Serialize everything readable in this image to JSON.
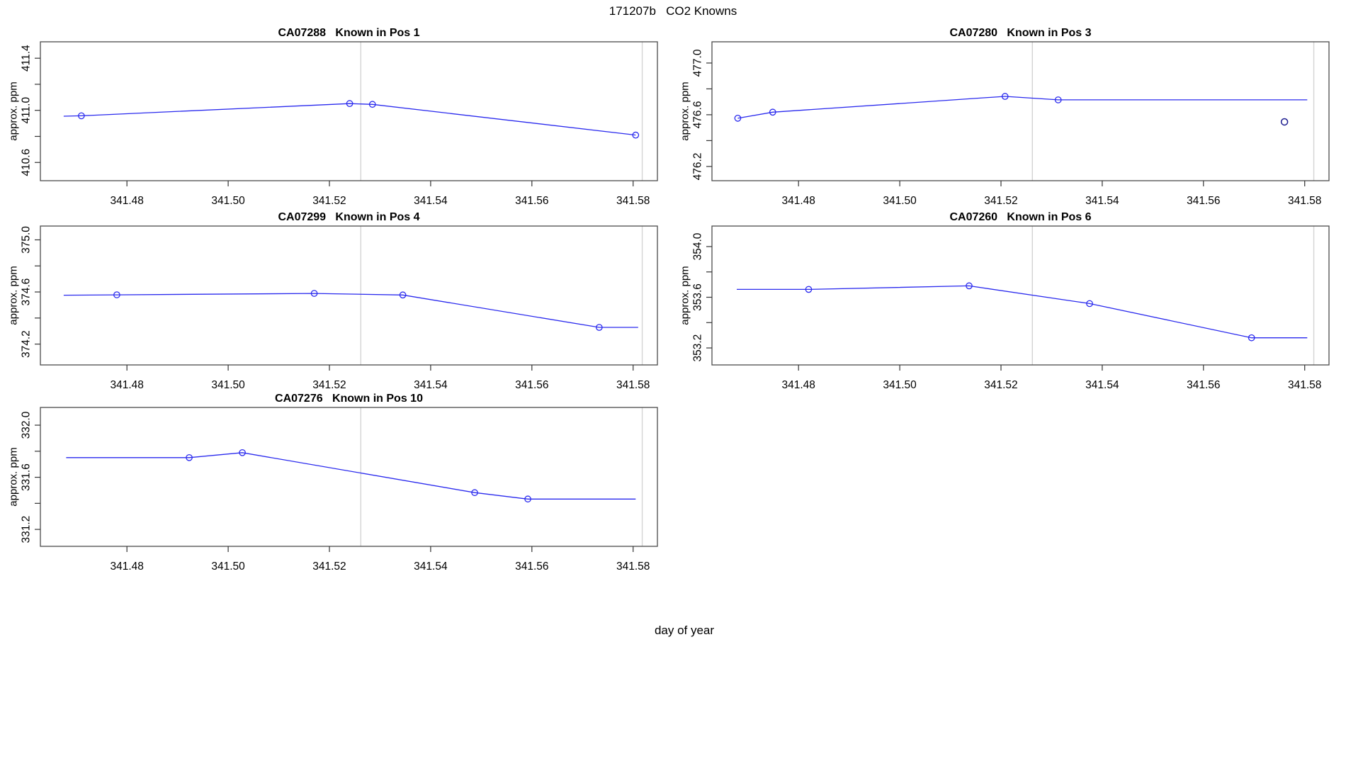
{
  "figure": {
    "title": "171207b   CO2 Knowns",
    "xlabel": "day of year"
  },
  "colors": {
    "line": "#2a2aee",
    "marker": "#2a2aee",
    "outlier": "#1c1c8f",
    "box": "#4a4a4a",
    "tick": "#333333",
    "gridline": "#d4d4d4",
    "text": "#000000",
    "background": "#ffffff"
  },
  "axes": {
    "xlim": [
      341.4629,
      341.5848
    ],
    "xticks": [
      341.48,
      341.5,
      341.52,
      341.54,
      341.56,
      341.58
    ],
    "xtick_labels": [
      "341.48",
      "341.50",
      "341.52",
      "341.54",
      "341.56",
      "341.58"
    ],
    "vlines": [
      341.5262,
      341.5818
    ]
  },
  "chart_data": [
    {
      "type": "line",
      "title": "CA07288   Known in Pos 1",
      "station": "CA07288",
      "position_label": "Known in Pos 1",
      "ylabel": "approx. ppm",
      "grid_row": 0,
      "grid_col": 0,
      "ylim": [
        410.46,
        411.526
      ],
      "yticks_major": [
        410.6,
        411.0,
        411.4
      ],
      "ytick_labels": [
        "410.6",
        "411.0",
        "411.4"
      ],
      "yticks_minor": [
        410.8,
        411.2
      ],
      "points": [
        {
          "x": 341.4675,
          "y": 410.955,
          "marker": false
        },
        {
          "x": 341.471,
          "y": 410.958,
          "marker": true
        },
        {
          "x": 341.524,
          "y": 411.052,
          "marker": true
        },
        {
          "x": 341.5285,
          "y": 411.046,
          "marker": true
        },
        {
          "x": 341.5805,
          "y": 410.81,
          "marker": true
        }
      ],
      "outlier_points": []
    },
    {
      "type": "line",
      "title": "CA07280   Known in Pos 3",
      "station": "CA07280",
      "position_label": "Known in Pos 3",
      "ylabel": "approx. ppm",
      "grid_row": 0,
      "grid_col": 1,
      "ylim": [
        476.09,
        477.164
      ],
      "yticks_major": [
        476.2,
        476.6,
        477.0
      ],
      "ytick_labels": [
        "476.2",
        "476.6",
        "477.0"
      ],
      "yticks_minor": [
        476.4,
        476.8
      ],
      "points": [
        {
          "x": 341.468,
          "y": 476.573,
          "marker": true
        },
        {
          "x": 341.4749,
          "y": 476.62,
          "marker": true
        },
        {
          "x": 341.5208,
          "y": 476.742,
          "marker": true
        },
        {
          "x": 341.5313,
          "y": 476.715,
          "marker": true
        },
        {
          "x": 341.5805,
          "y": 476.715,
          "marker": false
        }
      ],
      "outlier_points": [
        {
          "x": 341.576,
          "y": 476.545
        }
      ]
    },
    {
      "type": "line",
      "title": "CA07299   Known in Pos 4",
      "station": "CA07299",
      "position_label": "Known in Pos 4",
      "ylabel": "approx. ppm",
      "grid_row": 1,
      "grid_col": 0,
      "ylim": [
        374.04,
        375.106
      ],
      "yticks_major": [
        374.2,
        374.6,
        375.0
      ],
      "ytick_labels": [
        "374.2",
        "374.6",
        "375.0"
      ],
      "yticks_minor": [
        374.4,
        374.8
      ],
      "points": [
        {
          "x": 341.4675,
          "y": 374.575,
          "marker": false
        },
        {
          "x": 341.478,
          "y": 374.578,
          "marker": true
        },
        {
          "x": 341.517,
          "y": 374.589,
          "marker": true
        },
        {
          "x": 341.5345,
          "y": 374.577,
          "marker": true
        },
        {
          "x": 341.5733,
          "y": 374.328,
          "marker": true
        },
        {
          "x": 341.581,
          "y": 374.328,
          "marker": false
        }
      ],
      "outlier_points": []
    },
    {
      "type": "line",
      "title": "CA07260   Known in Pos 6",
      "station": "CA07260",
      "position_label": "Known in Pos 6",
      "ylabel": "approx. ppm",
      "grid_row": 1,
      "grid_col": 1,
      "ylim": [
        353.066,
        354.162
      ],
      "yticks_major": [
        353.2,
        353.6,
        354.0
      ],
      "ytick_labels": [
        "353.2",
        "353.6",
        "354.0"
      ],
      "yticks_minor": [
        353.4,
        353.8
      ],
      "points": [
        {
          "x": 341.4678,
          "y": 353.662,
          "marker": false
        },
        {
          "x": 341.482,
          "y": 353.662,
          "marker": true
        },
        {
          "x": 341.5137,
          "y": 353.69,
          "marker": true
        },
        {
          "x": 341.5375,
          "y": 353.55,
          "marker": true
        },
        {
          "x": 341.5695,
          "y": 353.28,
          "marker": true
        },
        {
          "x": 341.5805,
          "y": 353.28,
          "marker": false
        }
      ],
      "outlier_points": []
    },
    {
      "type": "line",
      "title": "CA07276   Known in Pos 10",
      "station": "CA07276",
      "position_label": "Known in Pos 10",
      "ylabel": "approx. ppm",
      "grid_row": 2,
      "grid_col": 0,
      "ylim": [
        331.07,
        332.136
      ],
      "yticks_major": [
        331.2,
        331.6,
        332.0
      ],
      "ytick_labels": [
        "331.2",
        "331.6",
        "332.0"
      ],
      "yticks_minor": [
        331.4,
        331.8
      ],
      "points": [
        {
          "x": 341.468,
          "y": 331.751,
          "marker": false
        },
        {
          "x": 341.4923,
          "y": 331.751,
          "marker": true
        },
        {
          "x": 341.5028,
          "y": 331.789,
          "marker": true
        },
        {
          "x": 341.5487,
          "y": 331.482,
          "marker": true
        },
        {
          "x": 341.5592,
          "y": 331.433,
          "marker": true
        },
        {
          "x": 341.5805,
          "y": 331.433,
          "marker": false
        }
      ],
      "outlier_points": []
    }
  ]
}
